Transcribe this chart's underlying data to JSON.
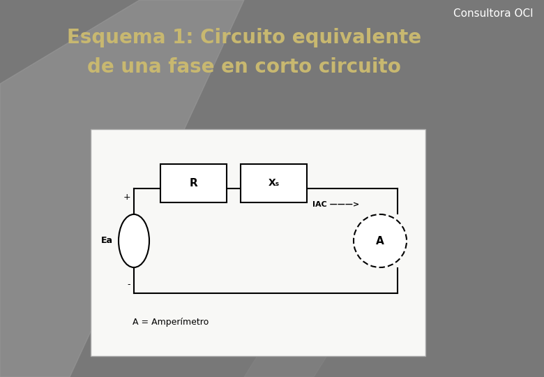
{
  "title_line1": "Esquema 1: Circuito equivalente",
  "title_line2": "de una fase en corto circuito",
  "title_color": "#C8B870",
  "title_fontsize": 20,
  "title_fontstyle": "bold",
  "consultora_text": "Consultora OCI",
  "consultora_color": "#FFFFFF",
  "consultora_fontsize": 11,
  "label_R": "R",
  "label_Xs": "Xₛ",
  "label_IAC": "IAC ———>",
  "label_Ea": "Ea",
  "label_A": "A",
  "label_amperim": "A = Amperímetro",
  "plus_sign": "+",
  "minus_sign": "-"
}
